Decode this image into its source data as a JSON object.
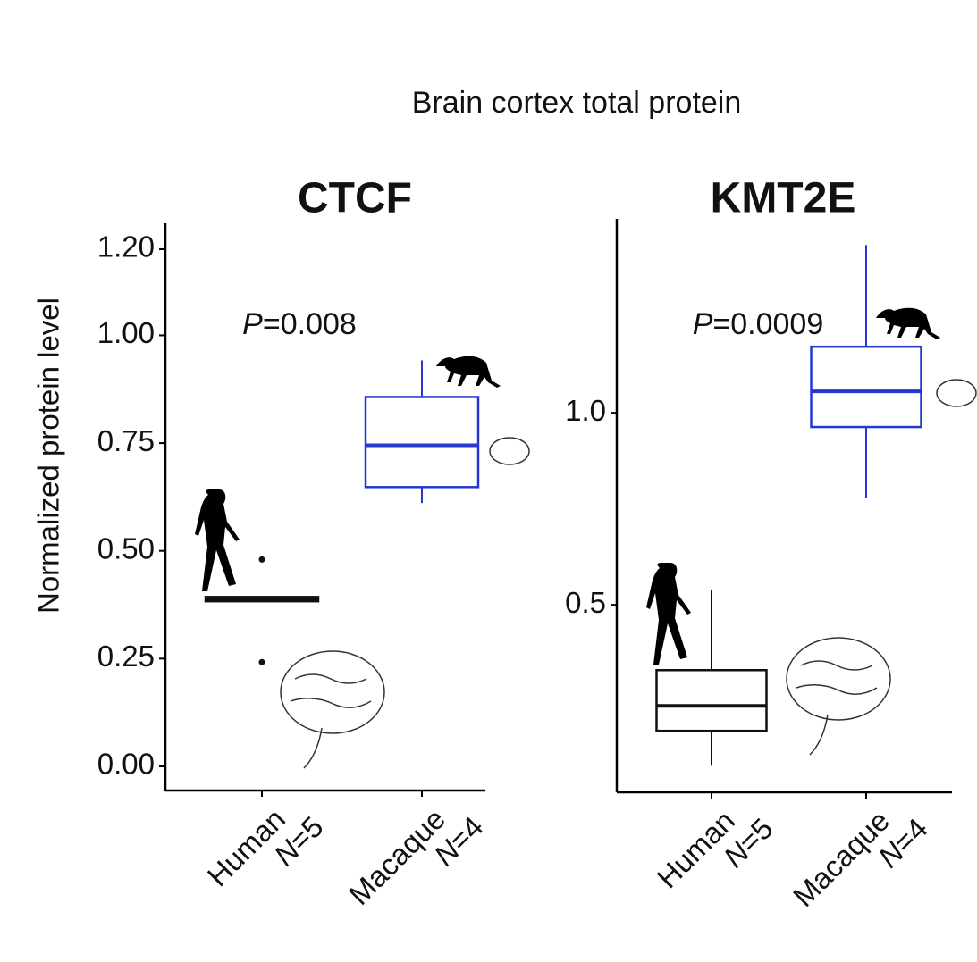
{
  "figure_title": "Brain cortex total protein",
  "y_label": "Normalized protein level",
  "chart_data": [
    {
      "type": "box",
      "title": "CTCF",
      "annotation": "P=0.008",
      "categories": [
        "Human",
        "Macaque"
      ],
      "sample_sizes": [
        "N=5",
        "N=4"
      ],
      "ylim": [
        -0.056,
        1.26
      ],
      "yticks": [
        {
          "value": 0,
          "label": "0.00"
        },
        {
          "value": 0.25,
          "label": "0.25"
        },
        {
          "value": 0.5,
          "label": "0.50"
        },
        {
          "value": 0.75,
          "label": "0.75"
        },
        {
          "value": 1,
          "label": "1.00"
        },
        {
          "value": 1.2,
          "label": "1.20"
        }
      ],
      "boxes": [
        {
          "color": "#111111",
          "whisker_low": 0.383,
          "q1": 0.383,
          "median": 0.388,
          "q3": 0.393,
          "whisker_high": 0.393,
          "outliers": [
            0.48,
            0.242
          ]
        },
        {
          "color": "#2438d0",
          "whisker_low": 0.611,
          "q1": 0.648,
          "median": 0.745,
          "q3": 0.857,
          "whisker_high": 0.942,
          "outliers": []
        }
      ]
    },
    {
      "type": "box",
      "title": "KMT2E",
      "annotation": "P=0.0009",
      "categories": [
        "Human",
        "Macaque"
      ],
      "sample_sizes": [
        "N=5",
        "N=4"
      ],
      "ylim": [
        0.012,
        1.505
      ],
      "yticks": [
        {
          "value": 0.5,
          "label": "0.5"
        },
        {
          "value": 1,
          "label": "1.0"
        }
      ],
      "boxes": [
        {
          "color": "#111111",
          "whisker_low": 0.081,
          "q1": 0.172,
          "median": 0.237,
          "q3": 0.33,
          "whisker_high": 0.54,
          "outliers": []
        },
        {
          "color": "#2438d0",
          "whisker_low": 0.779,
          "q1": 0.963,
          "median": 1.056,
          "q3": 1.172,
          "whisker_high": 1.437,
          "outliers": []
        }
      ]
    }
  ]
}
